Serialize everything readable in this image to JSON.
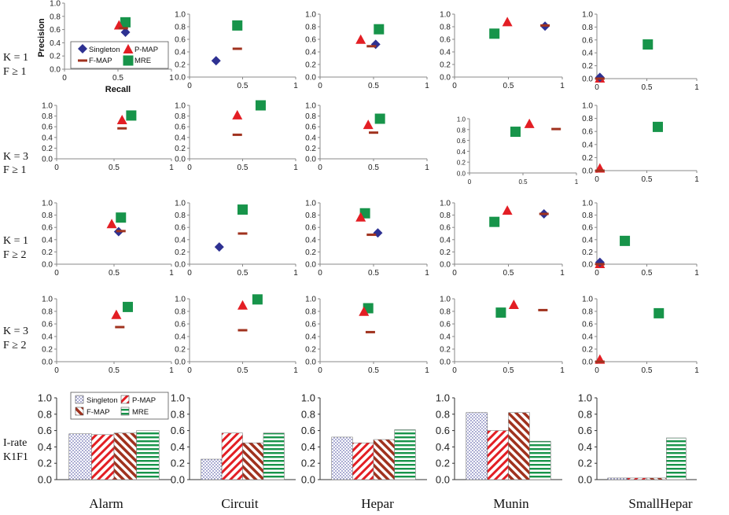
{
  "colors": {
    "singleton": "#2e3192",
    "pmap": "#e31e24",
    "fmap": "#a0321e",
    "mre": "#17944a",
    "axis": "#888888"
  },
  "columns": [
    "Alarm",
    "Circuit",
    "Hepar",
    "Munin",
    "SmallHepar"
  ],
  "rows": [
    {
      "line1": "K = 1",
      "line2": "F ≥ 1"
    },
    {
      "line1": "K = 3",
      "line2": "F ≥ 1"
    },
    {
      "line1": "K = 1",
      "line2": "F ≥ 2"
    },
    {
      "line1": "K = 3",
      "line2": "F ≥ 2"
    },
    {
      "line1": "I-rate",
      "line2": "K1F1"
    }
  ],
  "legend": {
    "singleton": "Singleton",
    "pmap": "P-MAP",
    "fmap": "F-MAP",
    "mre": "MRE"
  },
  "axis_labels": {
    "x": "Recall",
    "y": "Precision"
  },
  "x_ticks": [
    "0",
    "0.5",
    "1"
  ],
  "y_ticks": [
    "0.0",
    "0.2",
    "0.4",
    "0.6",
    "0.8",
    "1.0"
  ],
  "chart_data": [
    {
      "type": "scatter",
      "row": 0,
      "xlim": [
        0,
        1
      ],
      "ylim": [
        0,
        1
      ],
      "panels": [
        {
          "dataset": "Alarm",
          "points": {
            "singleton": [
              0.57,
              0.56
            ],
            "pmap": [
              0.51,
              0.66
            ],
            "fmap": [
              0.55,
              0.62
            ],
            "mre": [
              0.57,
              0.71
            ]
          }
        },
        {
          "dataset": "Circuit",
          "points": {
            "singleton": [
              0.25,
              0.26
            ],
            "pmap": null,
            "fmap": [
              0.45,
              0.45
            ],
            "mre": [
              0.45,
              0.82
            ]
          }
        },
        {
          "dataset": "Hepar",
          "points": {
            "singleton": [
              0.52,
              0.52
            ],
            "pmap": [
              0.38,
              0.59
            ],
            "fmap": [
              0.48,
              0.49
            ],
            "mre": [
              0.55,
              0.76
            ]
          }
        },
        {
          "dataset": "Munin",
          "points": {
            "singleton": [
              0.84,
              0.81
            ],
            "pmap": [
              0.49,
              0.87
            ],
            "fmap": [
              0.84,
              0.82
            ],
            "mre": [
              0.37,
              0.69
            ]
          }
        },
        {
          "dataset": "SmallHepar",
          "points": {
            "singleton": [
              0.03,
              0.02
            ],
            "pmap": [
              0.03,
              0.0
            ],
            "fmap": [
              0.03,
              0.0
            ],
            "mre": [
              0.51,
              0.53
            ]
          }
        }
      ]
    },
    {
      "type": "scatter",
      "row": 1,
      "xlim": [
        0,
        1
      ],
      "ylim": [
        0,
        1
      ],
      "panels": [
        {
          "dataset": "Alarm",
          "points": {
            "singleton": null,
            "pmap": [
              0.57,
              0.72
            ],
            "fmap": [
              0.57,
              0.57
            ],
            "mre": [
              0.65,
              0.81
            ]
          }
        },
        {
          "dataset": "Circuit",
          "points": {
            "singleton": null,
            "pmap": [
              0.45,
              0.81
            ],
            "fmap": [
              0.45,
              0.45
            ],
            "mre": [
              0.67,
              1.0
            ]
          }
        },
        {
          "dataset": "Hepar",
          "points": {
            "singleton": null,
            "pmap": [
              0.45,
              0.63
            ],
            "fmap": [
              0.5,
              0.49
            ],
            "mre": [
              0.56,
              0.75
            ]
          }
        },
        {
          "dataset": "Munin",
          "points": {
            "singleton": null,
            "pmap": [
              0.56,
              0.9
            ],
            "fmap": [
              0.81,
              0.81
            ],
            "mre": [
              0.43,
              0.76
            ]
          }
        },
        {
          "dataset": "SmallHepar",
          "points": {
            "singleton": null,
            "pmap": [
              0.03,
              0.03
            ],
            "fmap": [
              0.03,
              0.0
            ],
            "mre": [
              0.61,
              0.67
            ]
          }
        }
      ]
    },
    {
      "type": "scatter",
      "row": 2,
      "xlim": [
        0,
        1
      ],
      "ylim": [
        0,
        1
      ],
      "panels": [
        {
          "dataset": "Alarm",
          "points": {
            "singleton": [
              0.54,
              0.53
            ],
            "pmap": [
              0.48,
              0.65
            ],
            "fmap": [
              0.56,
              0.54
            ],
            "mre": [
              0.56,
              0.76
            ]
          }
        },
        {
          "dataset": "Circuit",
          "points": {
            "singleton": [
              0.28,
              0.28
            ],
            "pmap": null,
            "fmap": [
              0.5,
              0.5
            ],
            "mre": [
              0.5,
              0.89
            ]
          }
        },
        {
          "dataset": "Hepar",
          "points": {
            "singleton": [
              0.54,
              0.51
            ],
            "pmap": [
              0.38,
              0.76
            ],
            "fmap": [
              0.48,
              0.48
            ],
            "mre": [
              0.42,
              0.83
            ]
          }
        },
        {
          "dataset": "Munin",
          "points": {
            "singleton": [
              0.83,
              0.82
            ],
            "pmap": [
              0.49,
              0.87
            ],
            "fmap": [
              0.83,
              0.82
            ],
            "mre": [
              0.37,
              0.69
            ]
          }
        },
        {
          "dataset": "SmallHepar",
          "points": {
            "singleton": [
              0.03,
              0.03
            ],
            "pmap": [
              0.03,
              0.0
            ],
            "fmap": [
              0.03,
              0.0
            ],
            "mre": [
              0.28,
              0.38
            ]
          }
        }
      ]
    },
    {
      "type": "scatter",
      "row": 3,
      "xlim": [
        0,
        1
      ],
      "ylim": [
        0,
        1
      ],
      "panels": [
        {
          "dataset": "Alarm",
          "points": {
            "singleton": null,
            "pmap": [
              0.52,
              0.74
            ],
            "fmap": [
              0.55,
              0.55
            ],
            "mre": [
              0.62,
              0.87
            ]
          }
        },
        {
          "dataset": "Circuit",
          "points": {
            "singleton": null,
            "pmap": [
              0.5,
              0.89
            ],
            "fmap": [
              0.5,
              0.5
            ],
            "mre": [
              0.64,
              0.99
            ]
          }
        },
        {
          "dataset": "Hepar",
          "points": {
            "singleton": null,
            "pmap": [
              0.41,
              0.79
            ],
            "fmap": [
              0.47,
              0.47
            ],
            "mre": [
              0.45,
              0.85
            ]
          }
        },
        {
          "dataset": "Munin",
          "points": {
            "singleton": null,
            "pmap": [
              0.55,
              0.9
            ],
            "fmap": [
              0.82,
              0.82
            ],
            "mre": [
              0.43,
              0.78
            ]
          }
        },
        {
          "dataset": "SmallHepar",
          "points": {
            "singleton": null,
            "pmap": [
              0.03,
              0.03
            ],
            "fmap": [
              0.03,
              0.0
            ],
            "mre": [
              0.62,
              0.77
            ]
          }
        }
      ]
    },
    {
      "type": "bar",
      "row": 4,
      "ylim": [
        0,
        1
      ],
      "panels": [
        {
          "dataset": "Alarm",
          "values": {
            "singleton": 0.56,
            "pmap": 0.55,
            "fmap": 0.57,
            "mre": 0.6
          }
        },
        {
          "dataset": "Circuit",
          "values": {
            "singleton": 0.25,
            "pmap": 0.57,
            "fmap": 0.45,
            "mre": 0.57
          }
        },
        {
          "dataset": "Hepar",
          "values": {
            "singleton": 0.52,
            "pmap": 0.45,
            "fmap": 0.49,
            "mre": 0.61
          }
        },
        {
          "dataset": "Munin",
          "values": {
            "singleton": 0.82,
            "pmap": 0.6,
            "fmap": 0.82,
            "mre": 0.47
          }
        },
        {
          "dataset": "SmallHepar",
          "values": {
            "singleton": 0.02,
            "pmap": 0.02,
            "fmap": 0.02,
            "mre": 0.51
          }
        }
      ]
    }
  ]
}
